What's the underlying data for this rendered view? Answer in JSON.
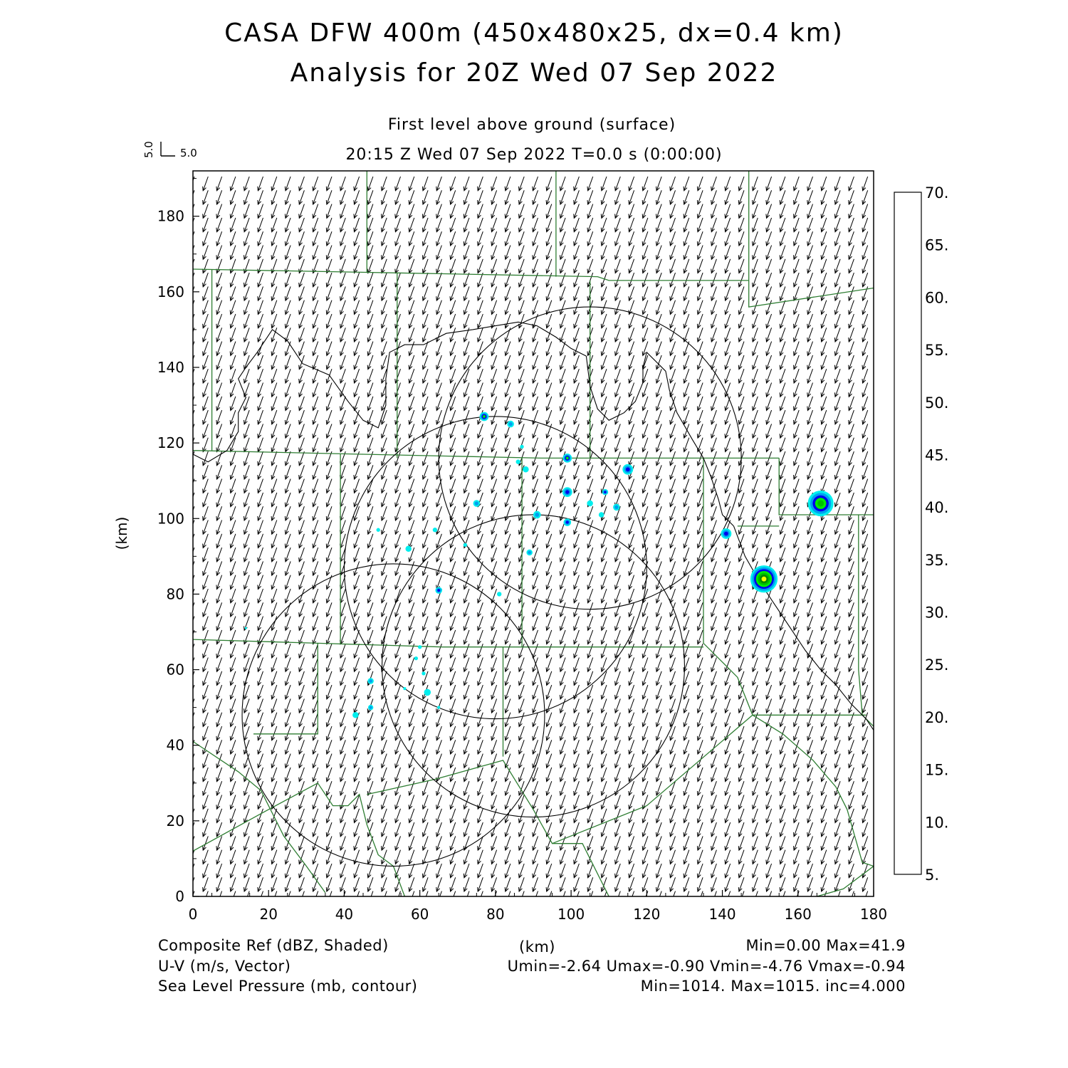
{
  "title": "CASA DFW 400m (450x480x25, dx=0.4 km)",
  "subtitle": "Analysis for 20Z Wed 07 Sep 2022",
  "level": "First level above ground (surface)",
  "valid_time": "20:15 Z Wed 07 Sep 2022    T=0.0 s (0:00:00)",
  "vector_key": {
    "x_label": "5.0",
    "y_label": "5.0"
  },
  "y_axis_label": "(km)",
  "x_axis_label": "(km)",
  "footer": {
    "left": [
      "Composite Ref (dBZ, Shaded)",
      "U-V (m/s, Vector)",
      "Sea Level Pressure (mb, contour)"
    ],
    "right": [
      "Min=0.00 Max=41.9",
      "Umin=-2.64 Umax=-0.90 Vmin=-4.76 Vmax=-0.94",
      "Min=1014. Max=1015. inc=4.000"
    ]
  },
  "colors": {
    "boundary": "#2e7d32",
    "contour": "#000000",
    "scale": [
      "#00eeee",
      "#00a0f0",
      "#0000ee",
      "#00ee00",
      "#00c000",
      "#008800",
      "#ffff00",
      "#e6b800",
      "#ff8c00",
      "#ff0000",
      "#dd0000",
      "#bb0000",
      "#ff00ff"
    ]
  },
  "chart_data": {
    "type": "map",
    "x_ticks": [
      "0",
      "20",
      "40",
      "60",
      "80",
      "100",
      "120",
      "140",
      "160",
      "180"
    ],
    "y_ticks": [
      "0",
      "20",
      "40",
      "60",
      "80",
      "100",
      "120",
      "140",
      "160",
      "180"
    ],
    "xlim": [
      0,
      180
    ],
    "ylim": [
      0,
      192
    ],
    "colorbar_labels": [
      "5.",
      "10.",
      "15.",
      "20.",
      "25.",
      "30.",
      "35.",
      "40.",
      "45.",
      "50.",
      "55.",
      "60.",
      "65.",
      "70."
    ],
    "wind_u": -1.5,
    "wind_v": -4.2,
    "radar_rings": [
      {
        "x": 105,
        "y": 116,
        "r": 40
      },
      {
        "x": 80,
        "y": 87,
        "r": 40
      },
      {
        "x": 90,
        "y": 61,
        "r": 40
      },
      {
        "x": 53,
        "y": 48,
        "r": 40
      }
    ],
    "cells": [
      {
        "x": 151,
        "y": 84,
        "r": 3.6,
        "dbz": 38
      },
      {
        "x": 166,
        "y": 104,
        "r": 3.4,
        "dbz": 28
      },
      {
        "x": 77,
        "y": 127,
        "r": 1.2,
        "dbz": 22
      },
      {
        "x": 99,
        "y": 116,
        "r": 1.2,
        "dbz": 22
      },
      {
        "x": 115,
        "y": 113,
        "r": 1.4,
        "dbz": 17
      },
      {
        "x": 99,
        "y": 107,
        "r": 1.3,
        "dbz": 17
      },
      {
        "x": 99,
        "y": 99,
        "r": 1.0,
        "dbz": 17
      },
      {
        "x": 141,
        "y": 96,
        "r": 1.4,
        "dbz": 16
      },
      {
        "x": 109,
        "y": 107,
        "r": 0.8,
        "dbz": 16
      },
      {
        "x": 65,
        "y": 81,
        "r": 0.9,
        "dbz": 16
      },
      {
        "x": 84,
        "y": 125,
        "r": 0.9,
        "dbz": 11
      },
      {
        "x": 91,
        "y": 101,
        "r": 1.0,
        "dbz": 11
      },
      {
        "x": 112,
        "y": 103,
        "r": 0.9,
        "dbz": 11
      },
      {
        "x": 75,
        "y": 104,
        "r": 0.9,
        "dbz": 11
      },
      {
        "x": 108,
        "y": 101,
        "r": 0.7,
        "dbz": 8
      },
      {
        "x": 105,
        "y": 104,
        "r": 0.8,
        "dbz": 8
      },
      {
        "x": 88,
        "y": 113,
        "r": 0.8,
        "dbz": 8
      },
      {
        "x": 86,
        "y": 115,
        "r": 0.6,
        "dbz": 8
      },
      {
        "x": 87,
        "y": 119,
        "r": 0.5,
        "dbz": 8
      },
      {
        "x": 89,
        "y": 91,
        "r": 0.8,
        "dbz": 11
      },
      {
        "x": 57,
        "y": 92,
        "r": 0.8,
        "dbz": 8
      },
      {
        "x": 64,
        "y": 97,
        "r": 0.6,
        "dbz": 8
      },
      {
        "x": 49,
        "y": 97,
        "r": 0.5,
        "dbz": 8
      },
      {
        "x": 72,
        "y": 93,
        "r": 0.5,
        "dbz": 8
      },
      {
        "x": 81,
        "y": 80,
        "r": 0.6,
        "dbz": 8
      },
      {
        "x": 60,
        "y": 66,
        "r": 0.5,
        "dbz": 8
      },
      {
        "x": 59,
        "y": 63,
        "r": 0.5,
        "dbz": 8
      },
      {
        "x": 61,
        "y": 59,
        "r": 0.5,
        "dbz": 8
      },
      {
        "x": 47,
        "y": 57,
        "r": 0.8,
        "dbz": 11
      },
      {
        "x": 62,
        "y": 54,
        "r": 0.9,
        "dbz": 8
      },
      {
        "x": 56,
        "y": 55,
        "r": 0.4,
        "dbz": 8
      },
      {
        "x": 65,
        "y": 50,
        "r": 0.4,
        "dbz": 8
      },
      {
        "x": 47,
        "y": 50,
        "r": 0.7,
        "dbz": 11
      },
      {
        "x": 43,
        "y": 48,
        "r": 0.8,
        "dbz": 8
      },
      {
        "x": 14,
        "y": 71,
        "r": 0.3,
        "dbz": 8
      }
    ],
    "county_lines": [
      [
        [
          0,
          166
        ],
        [
          54,
          165
        ],
        [
          107,
          164
        ],
        [
          110,
          163
        ],
        [
          147,
          163
        ]
      ],
      [
        [
          0,
          118
        ],
        [
          45,
          117
        ],
        [
          92,
          116
        ],
        [
          113,
          116
        ],
        [
          135,
          116
        ],
        [
          155,
          116
        ]
      ],
      [
        [
          0,
          68
        ],
        [
          33,
          67
        ],
        [
          66,
          66
        ],
        [
          90,
          66
        ],
        [
          135,
          66
        ]
      ],
      [
        [
          5,
          166
        ],
        [
          5,
          118
        ]
      ],
      [
        [
          46,
          192
        ],
        [
          46,
          165
        ]
      ],
      [
        [
          54,
          165
        ],
        [
          54,
          116
        ]
      ],
      [
        [
          96,
          192
        ],
        [
          96,
          164
        ]
      ],
      [
        [
          105,
          163
        ],
        [
          105,
          116
        ]
      ],
      [
        [
          147,
          192
        ],
        [
          147,
          163
        ]
      ],
      [
        [
          39,
          117
        ],
        [
          39,
          67
        ]
      ],
      [
        [
          87,
          116
        ],
        [
          87,
          66
        ]
      ],
      [
        [
          33,
          67
        ],
        [
          33,
          43
        ],
        [
          16,
          43
        ]
      ],
      [
        [
          82,
          66
        ],
        [
          82,
          37
        ]
      ],
      [
        [
          135,
          116
        ],
        [
          135,
          67
        ],
        [
          140,
          62
        ],
        [
          144,
          58
        ],
        [
          148,
          48
        ]
      ],
      [
        [
          155,
          116
        ],
        [
          155,
          101
        ],
        [
          180,
          101
        ]
      ],
      [
        [
          147,
          163
        ],
        [
          147,
          156
        ],
        [
          180,
          161
        ]
      ],
      [
        [
          144,
          98
        ],
        [
          155,
          98
        ]
      ],
      [
        [
          0,
          41
        ],
        [
          12,
          33
        ],
        [
          18,
          28
        ],
        [
          24,
          16
        ],
        [
          30,
          8
        ],
        [
          35,
          1
        ]
      ],
      [
        [
          0,
          12
        ],
        [
          20,
          23
        ],
        [
          33,
          30
        ]
      ],
      [
        [
          33,
          30
        ],
        [
          37,
          24
        ],
        [
          41,
          24
        ],
        [
          44,
          27
        ],
        [
          46,
          19
        ],
        [
          49,
          11
        ],
        [
          53,
          8
        ],
        [
          56,
          0
        ]
      ],
      [
        [
          46,
          27
        ],
        [
          64,
          31
        ],
        [
          82,
          36
        ],
        [
          90,
          23
        ],
        [
          95,
          14
        ],
        [
          103,
          14
        ],
        [
          110,
          0
        ]
      ],
      [
        [
          95,
          14
        ],
        [
          120,
          24
        ],
        [
          148,
          48
        ]
      ],
      [
        [
          148,
          48
        ],
        [
          178,
          48
        ]
      ],
      [
        [
          148,
          48
        ],
        [
          156,
          43
        ],
        [
          164,
          36
        ],
        [
          170,
          29
        ],
        [
          173,
          23
        ],
        [
          175,
          16
        ],
        [
          177,
          9
        ],
        [
          180,
          8
        ]
      ],
      [
        [
          176,
          101
        ],
        [
          176,
          60
        ],
        [
          177,
          48
        ],
        [
          180,
          45
        ]
      ],
      [
        [
          165,
          0
        ],
        [
          172,
          2
        ],
        [
          180,
          8
        ]
      ]
    ],
    "pressure_contours": [
      [
        [
          0,
          117
        ],
        [
          4,
          115
        ],
        [
          9,
          118
        ],
        [
          12,
          123
        ],
        [
          12,
          128
        ],
        [
          14,
          132
        ],
        [
          12,
          137
        ],
        [
          14,
          140
        ],
        [
          17,
          144
        ],
        [
          21,
          150
        ],
        [
          25,
          147
        ],
        [
          29,
          141
        ],
        [
          36,
          138
        ],
        [
          41,
          131
        ],
        [
          45,
          126
        ],
        [
          49,
          124
        ],
        [
          51,
          130
        ],
        [
          51,
          137
        ],
        [
          52,
          144
        ],
        [
          56,
          146
        ],
        [
          61,
          146
        ],
        [
          67,
          149
        ],
        [
          74,
          150
        ],
        [
          80,
          151
        ],
        [
          86,
          152
        ],
        [
          91,
          151
        ],
        [
          96,
          148
        ],
        [
          100,
          145
        ],
        [
          104,
          143
        ],
        [
          105,
          135
        ],
        [
          107,
          129
        ],
        [
          110,
          126
        ],
        [
          114,
          128
        ],
        [
          117,
          131
        ],
        [
          119,
          136
        ],
        [
          119,
          140
        ],
        [
          120,
          144
        ],
        [
          123,
          141
        ],
        [
          125,
          139
        ],
        [
          126,
          134
        ],
        [
          128,
          128
        ],
        [
          132,
          121
        ],
        [
          135,
          116
        ],
        [
          137,
          111
        ],
        [
          139,
          105
        ],
        [
          140,
          101
        ],
        [
          143,
          98
        ]
      ],
      [
        [
          143,
          98
        ],
        [
          146,
          90
        ],
        [
          150,
          83
        ],
        [
          154,
          77
        ],
        [
          158,
          71
        ],
        [
          162,
          65
        ],
        [
          166,
          60
        ],
        [
          170,
          56
        ],
        [
          174,
          51
        ],
        [
          178,
          47
        ],
        [
          180,
          44
        ]
      ]
    ]
  }
}
